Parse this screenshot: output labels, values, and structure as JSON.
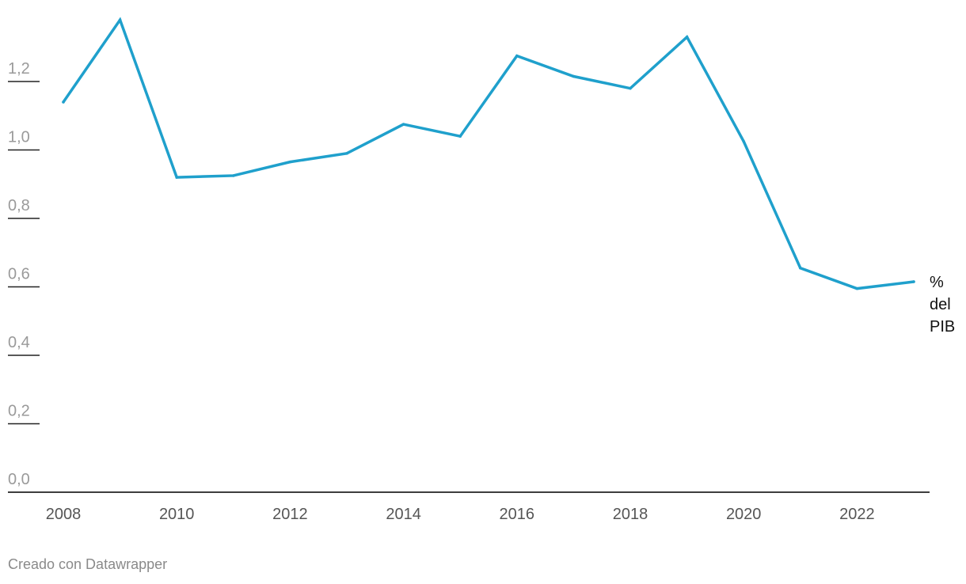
{
  "chart_data": {
    "type": "line",
    "title": "",
    "xlabel": "",
    "ylabel": "",
    "x": [
      2008,
      2009,
      2010,
      2011,
      2012,
      2013,
      2014,
      2015,
      2016,
      2017,
      2018,
      2019,
      2020,
      2021,
      2022,
      2023
    ],
    "x_ticks": [
      "2008",
      "2010",
      "2012",
      "2014",
      "2016",
      "2018",
      "2020",
      "2022"
    ],
    "y_ticks": [
      "0,0",
      "0,2",
      "0,4",
      "0,6",
      "0,8",
      "1,0",
      "1,2"
    ],
    "ylim": [
      0,
      1.37
    ],
    "grid": false,
    "series": [
      {
        "name": "% del PIB",
        "label_lines": [
          "%",
          "del",
          "PIB"
        ],
        "color": "#1fa0cc",
        "values": [
          1.14,
          1.38,
          0.92,
          0.925,
          0.965,
          0.99,
          1.075,
          1.04,
          1.275,
          1.215,
          1.18,
          1.33,
          1.025,
          0.655,
          0.595,
          0.615
        ]
      }
    ]
  },
  "footer": {
    "credit": "Creado con Datawrapper"
  }
}
